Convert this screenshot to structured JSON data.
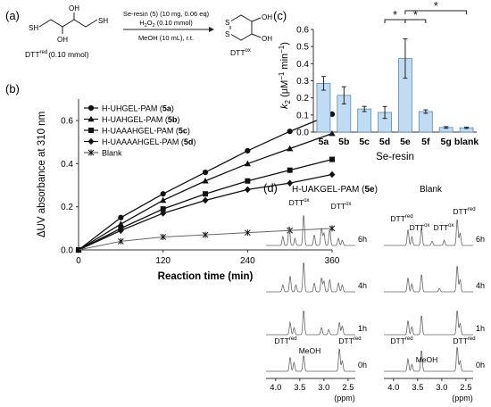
{
  "panels": {
    "a": "(a)",
    "b": "(b)",
    "c": "(c)",
    "d": "(d)"
  },
  "scheme": {
    "reactant_groups": [
      "SH",
      "OH",
      "OH",
      "SH"
    ],
    "reactant_label": "DTT",
    "reactant_sup": "red",
    "reactant_amount": "(0.10 mmol)",
    "conditions_line1": "Se-resin (5) (10 mg, 0.06 eq)",
    "conditions_line2a": "H",
    "conditions_line2b": "2",
    "conditions_line2c": "O",
    "conditions_line2d": "2",
    "conditions_line2e": " (0.10 mmol)",
    "conditions_line3": "MeOH (10 mL), r.t.",
    "product_groups": [
      "S",
      "S",
      "OH",
      "OH"
    ],
    "product_label": "DTT",
    "product_sup": "ox"
  },
  "chart_data": [
    {
      "panel": "b",
      "type": "line",
      "xlabel": "Reaction time (min)",
      "ylabel": "ΔUV absorbance at 310 nm",
      "xlim": [
        0,
        360
      ],
      "ylim": [
        0,
        0.7
      ],
      "xticks": [
        "0",
        "120",
        "240",
        "360"
      ],
      "yticks": [
        "0.0",
        "0.2",
        "0.4",
        "0.6"
      ],
      "legend_position": "top-left",
      "series": [
        {
          "name": "H-UHGEL-PAM",
          "compound": "5a",
          "marker": "circle",
          "x": [
            0,
            60,
            120,
            180,
            240,
            300,
            360
          ],
          "y": [
            0,
            0.15,
            0.26,
            0.36,
            0.46,
            0.55,
            0.63
          ]
        },
        {
          "name": "H-UAHGEL-PAM",
          "compound": "5b",
          "marker": "triangle",
          "x": [
            0,
            60,
            120,
            180,
            240,
            300,
            360
          ],
          "y": [
            0,
            0.12,
            0.23,
            0.32,
            0.4,
            0.47,
            0.54
          ]
        },
        {
          "name": "H-UAAAHGEL-PAM",
          "compound": "5c",
          "marker": "square",
          "x": [
            0,
            60,
            120,
            180,
            240,
            300,
            360
          ],
          "y": [
            0,
            0.1,
            0.19,
            0.26,
            0.32,
            0.37,
            0.42
          ]
        },
        {
          "name": "H-UAAAAHGEL-PAM",
          "compound": "5d",
          "marker": "diamond",
          "x": [
            0,
            60,
            120,
            180,
            240,
            300,
            360
          ],
          "y": [
            0,
            0.09,
            0.17,
            0.23,
            0.28,
            0.31,
            0.35
          ]
        },
        {
          "name": "Blank",
          "compound": "",
          "marker": "star",
          "x": [
            0,
            60,
            120,
            180,
            240,
            300,
            360
          ],
          "y": [
            0,
            0.04,
            0.06,
            0.07,
            0.08,
            0.09,
            0.1
          ]
        }
      ]
    },
    {
      "panel": "c",
      "type": "bar",
      "xlabel": "Se-resin",
      "ylabel_main": "k",
      "ylabel_sub": "2",
      "ylabel_rest": " (μM",
      "ylabel_sup1": "−1",
      "ylabel_mid": " min",
      "ylabel_sup2": "−1",
      "ylabel_end": ")",
      "ylim": [
        0,
        0.6
      ],
      "yticks": [
        "0.0",
        "0.1",
        "0.2",
        "0.3",
        "0.4",
        "0.5",
        "0.6"
      ],
      "categories": [
        "5a",
        "5b",
        "5c",
        "5d",
        "5e",
        "5f",
        "5g",
        "blank"
      ],
      "values": [
        0.285,
        0.215,
        0.135,
        0.115,
        0.43,
        0.12,
        0.027,
        0.025
      ],
      "errors": [
        0.04,
        0.05,
        0.015,
        0.035,
        0.115,
        0.01,
        0.005,
        0.004
      ],
      "significance": [
        {
          "from": "5d",
          "to": "5e",
          "label": "*",
          "level": 1
        },
        {
          "from": "5e",
          "to": "5f",
          "label": "*",
          "level": 1
        },
        {
          "from": "5e",
          "to": "blank",
          "label": "*",
          "level": 2
        }
      ]
    }
  ],
  "nmr": {
    "left_title_main": "H-UAKGEL-PAM (",
    "left_title_bold": "5e",
    "left_title_end": ")",
    "right_title": "Blank",
    "times": [
      "6h",
      "4h",
      "1h",
      "0h"
    ],
    "axis_ticks": [
      "4.0",
      "3.5",
      "3.0",
      "2.5"
    ],
    "axis_unit": "(ppm)",
    "label_dtt": "DTT",
    "sup_ox": "ox",
    "sup_red": "red",
    "label_meoh": "MeOH"
  }
}
